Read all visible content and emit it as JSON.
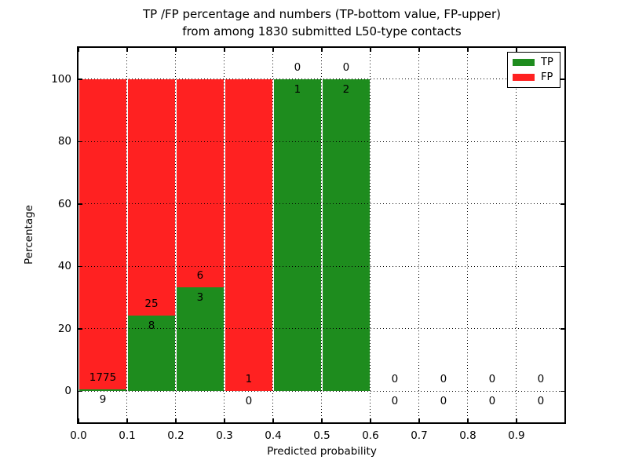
{
  "figure": {
    "title_line1": "TP /FP percentage and numbers (TP-bottom value, FP-upper)",
    "title_line2": "from among 1830 submitted L50-type contacts",
    "xlabel": "Predicted probability",
    "ylabel": "Percentage"
  },
  "legend": {
    "items": [
      {
        "label": "TP",
        "color": "#1e8c1e"
      },
      {
        "label": "FP",
        "color": "#ff2121"
      }
    ]
  },
  "colors": {
    "tp": "#1e8c1e",
    "fp": "#ff2121",
    "grid": "#000000",
    "background": "#ffffff"
  },
  "chart_data": {
    "type": "bar",
    "stacked": true,
    "title": "TP /FP percentage and numbers (TP-bottom value, FP-upper) from among 1830 submitted L50-type contacts",
    "xlabel": "Predicted probability",
    "ylabel": "Percentage",
    "total_contacts": 1830,
    "contact_type": "L50",
    "bin_edges": [
      0.0,
      0.1,
      0.2,
      0.3,
      0.4,
      0.5,
      0.6,
      0.7,
      0.8,
      0.9,
      1.0
    ],
    "x_tick_values": [
      0.0,
      0.1,
      0.2,
      0.3,
      0.4,
      0.5,
      0.6,
      0.7,
      0.8,
      0.9
    ],
    "x_tick_labels": [
      "0.0",
      "0.1",
      "0.2",
      "0.3",
      "0.4",
      "0.5",
      "0.6",
      "0.7",
      "0.8",
      "0.9"
    ],
    "y_tick_values": [
      0,
      20,
      40,
      60,
      80,
      100
    ],
    "y_tick_labels": [
      "0",
      "20",
      "40",
      "60",
      "80",
      "100"
    ],
    "xlim": [
      0.0,
      0.9985
    ],
    "ylim": [
      -10,
      110
    ],
    "grid": true,
    "grid_style": "dotted",
    "legend_position": "upper right",
    "series": [
      {
        "name": "TP",
        "counts": [
          9,
          8,
          3,
          0,
          1,
          2,
          0,
          0,
          0,
          0
        ],
        "pct": [
          0.5,
          24.2,
          33.3,
          0,
          100,
          100,
          0,
          0,
          0,
          0
        ]
      },
      {
        "name": "FP",
        "counts": [
          1775,
          25,
          6,
          1,
          0,
          0,
          0,
          0,
          0,
          0
        ],
        "pct": [
          99.5,
          75.8,
          66.7,
          100,
          0,
          0,
          0,
          0,
          0,
          0
        ]
      }
    ]
  }
}
